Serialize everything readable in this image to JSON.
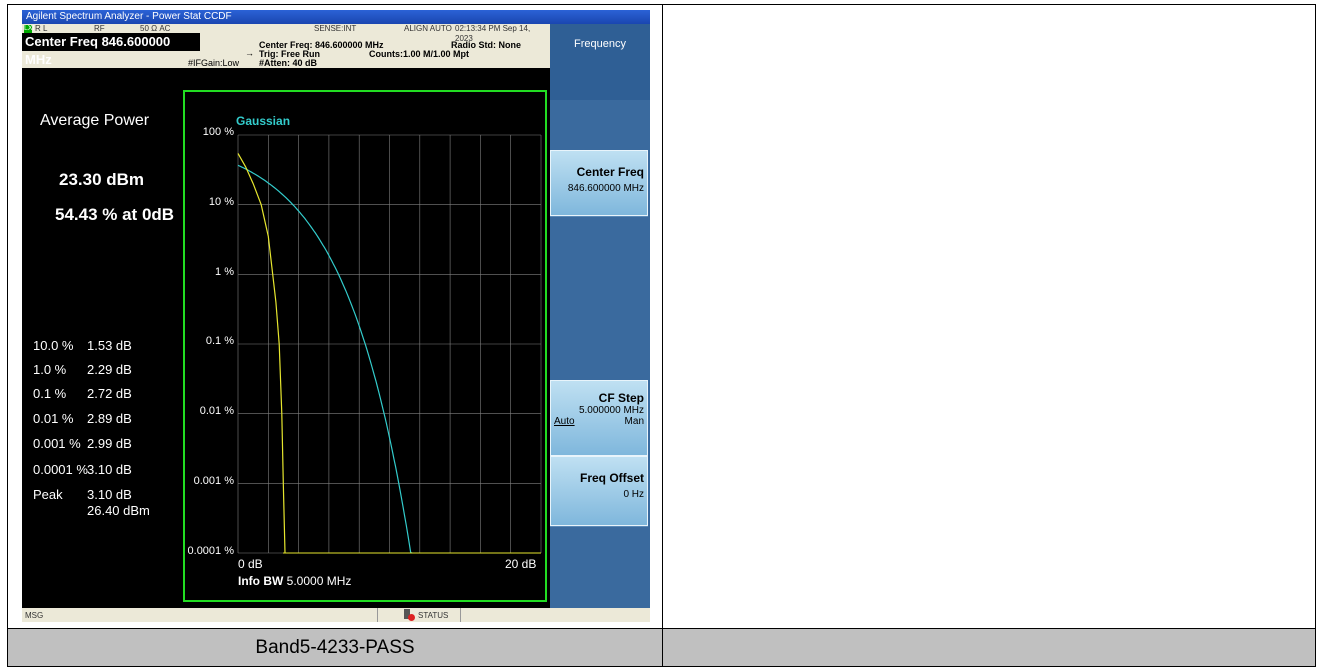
{
  "window_title": "Agilent Spectrum Analyzer - Power Stat CCDF",
  "infobar": {
    "lxi": "LXI",
    "rl": "R L",
    "rf": "RF",
    "impedance": "50 Ω  AC",
    "sense": "SENSE:INT",
    "align": "ALIGN AUTO",
    "timestamp": "02:13:34 PM Sep 14, 2023",
    "center_freq_title": "Center Freq 846.600000 MHz",
    "center_freq_detail": "Center Freq: 846.600000 MHz",
    "trig": "Trig: Free Run",
    "counts": "Counts:1.00 M/1.00 Mpt",
    "atten": "#Atten: 40 dB",
    "ifgain": "#IFGain:Low",
    "radio_std": "Radio Std: None"
  },
  "results": {
    "title": "Average Power",
    "avg_power": "23.30 dBm",
    "at_0db": "54.43 % at 0dB",
    "rows": [
      {
        "pct": "10.0 %",
        "val": "1.53 dB"
      },
      {
        "pct": "1.0 %",
        "val": "2.29 dB"
      },
      {
        "pct": "0.1 %",
        "val": "2.72 dB"
      },
      {
        "pct": "0.01 %",
        "val": "2.89 dB"
      },
      {
        "pct": "0.001 %",
        "val": "2.99 dB"
      },
      {
        "pct": "0.0001 %",
        "val": "3.10 dB"
      },
      {
        "pct": "Peak",
        "val": "3.10 dB"
      }
    ],
    "peak_dbm": "26.40 dBm"
  },
  "graph": {
    "legend": "Gaussian",
    "ylabels": [
      "100 %",
      "10 %",
      "1 %",
      "0.1 %",
      "0.01 %",
      "0.001 %",
      "0.0001 %"
    ],
    "x_start": "0 dB",
    "x_end": "20 dB",
    "info_bw_label": "Info BW",
    "info_bw_value": "5.0000 MHz",
    "colors": {
      "gaussian": "#33cccc",
      "measured": "#e6e62e",
      "grid": "#808080",
      "frame": "#22dd22"
    }
  },
  "softkeys": {
    "title": "Frequency",
    "center_freq": {
      "label": "Center Freq",
      "value": "846.600000 MHz"
    },
    "cf_step": {
      "label": "CF Step",
      "value": "5.000000 MHz",
      "auto": "Auto",
      "man": "Man"
    },
    "freq_offset": {
      "label": "Freq Offset",
      "value": "0 Hz"
    }
  },
  "statusbar": {
    "msg": "MSG",
    "status": "STATUS"
  },
  "caption": "Band5-4233-PASS"
}
